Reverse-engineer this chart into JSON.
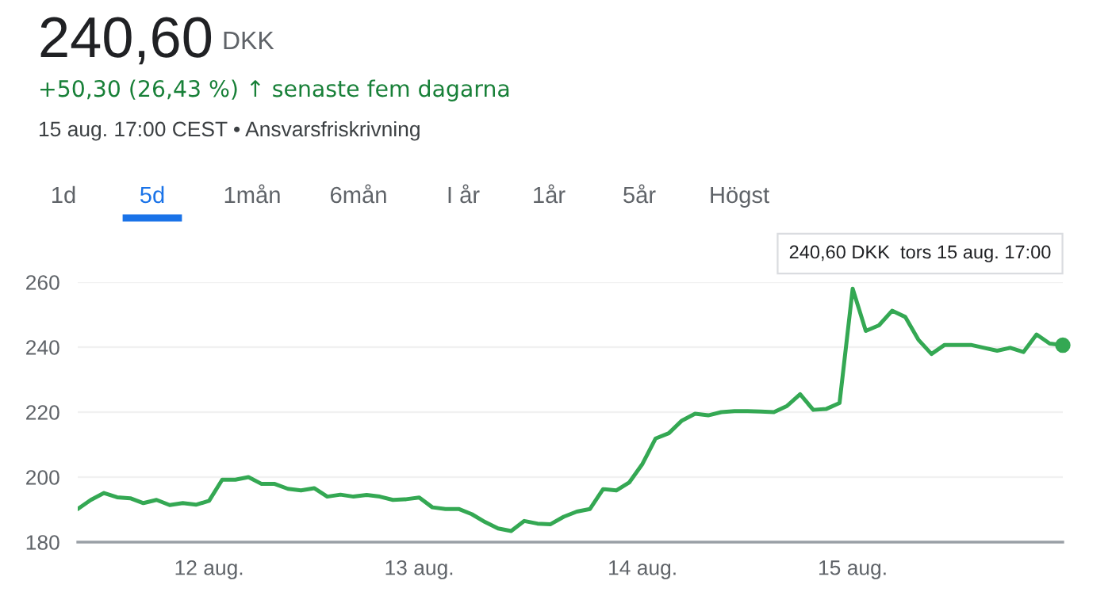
{
  "chart_data": {
    "type": "line",
    "title": "240,60",
    "subtitle": "+50,30 (26,43 %) ↑ senaste fem dagarna",
    "annotations": [
      "DKK",
      "15 aug. 17:00 CEST • Ansvarsfriskrivning",
      "1d",
      "5d",
      "1mån",
      "6mån",
      "I år",
      "1år",
      "5år",
      "Högst",
      "240,60 DKK  tors 15 aug. 17:00"
    ],
    "categories": [
      null,
      null,
      null,
      null,
      null,
      null,
      null,
      null,
      null,
      null,
      "12 aug.",
      null,
      null,
      null,
      null,
      null,
      null,
      null,
      null,
      null,
      null,
      null,
      null,
      null,
      null,
      null,
      "13 aug.",
      null,
      null,
      null,
      null,
      null,
      null,
      null,
      null,
      null,
      null,
      null,
      null,
      null,
      null,
      null,
      null,
      "14 aug.",
      null,
      null,
      null,
      null,
      null,
      null,
      null,
      null,
      null,
      null,
      null,
      null,
      null,
      null,
      null,
      "15 aug.",
      null,
      null,
      null,
      null,
      null,
      null,
      null,
      null,
      null,
      null,
      null,
      null,
      null,
      null,
      null,
      null
    ],
    "series": [
      {
        "color": "#34a853",
        "values": [
          190.2,
          193.0,
          195.1,
          193.8,
          193.5,
          192.0,
          193.0,
          191.4,
          192.0,
          191.5,
          192.7,
          199.2,
          199.2,
          200.0,
          197.9,
          197.9,
          196.4,
          195.9,
          196.6,
          194.0,
          194.6,
          194.0,
          194.5,
          194.0,
          193.0,
          193.2,
          193.7,
          190.7,
          190.2,
          190.2,
          188.6,
          186.2,
          184.2,
          183.4,
          186.5,
          185.7,
          185.5,
          187.8,
          189.4,
          190.2,
          196.3,
          195.9,
          198.4,
          204.1,
          211.9,
          213.5,
          217.4,
          219.5,
          219.0,
          220.0,
          220.3,
          220.3,
          220.2,
          220.0,
          221.9,
          225.5,
          220.7,
          221.0,
          222.8,
          258.0,
          245.0,
          246.7,
          251.2,
          249.3,
          242.3,
          237.9,
          240.7,
          240.7,
          240.7,
          239.8,
          238.9,
          239.8,
          238.5,
          243.9,
          241.1,
          240.6
        ]
      }
    ],
    "ylim": [
      180,
      260
    ],
    "yticks": [
      180,
      200,
      220,
      240,
      260
    ],
    "grid": "y"
  }
}
